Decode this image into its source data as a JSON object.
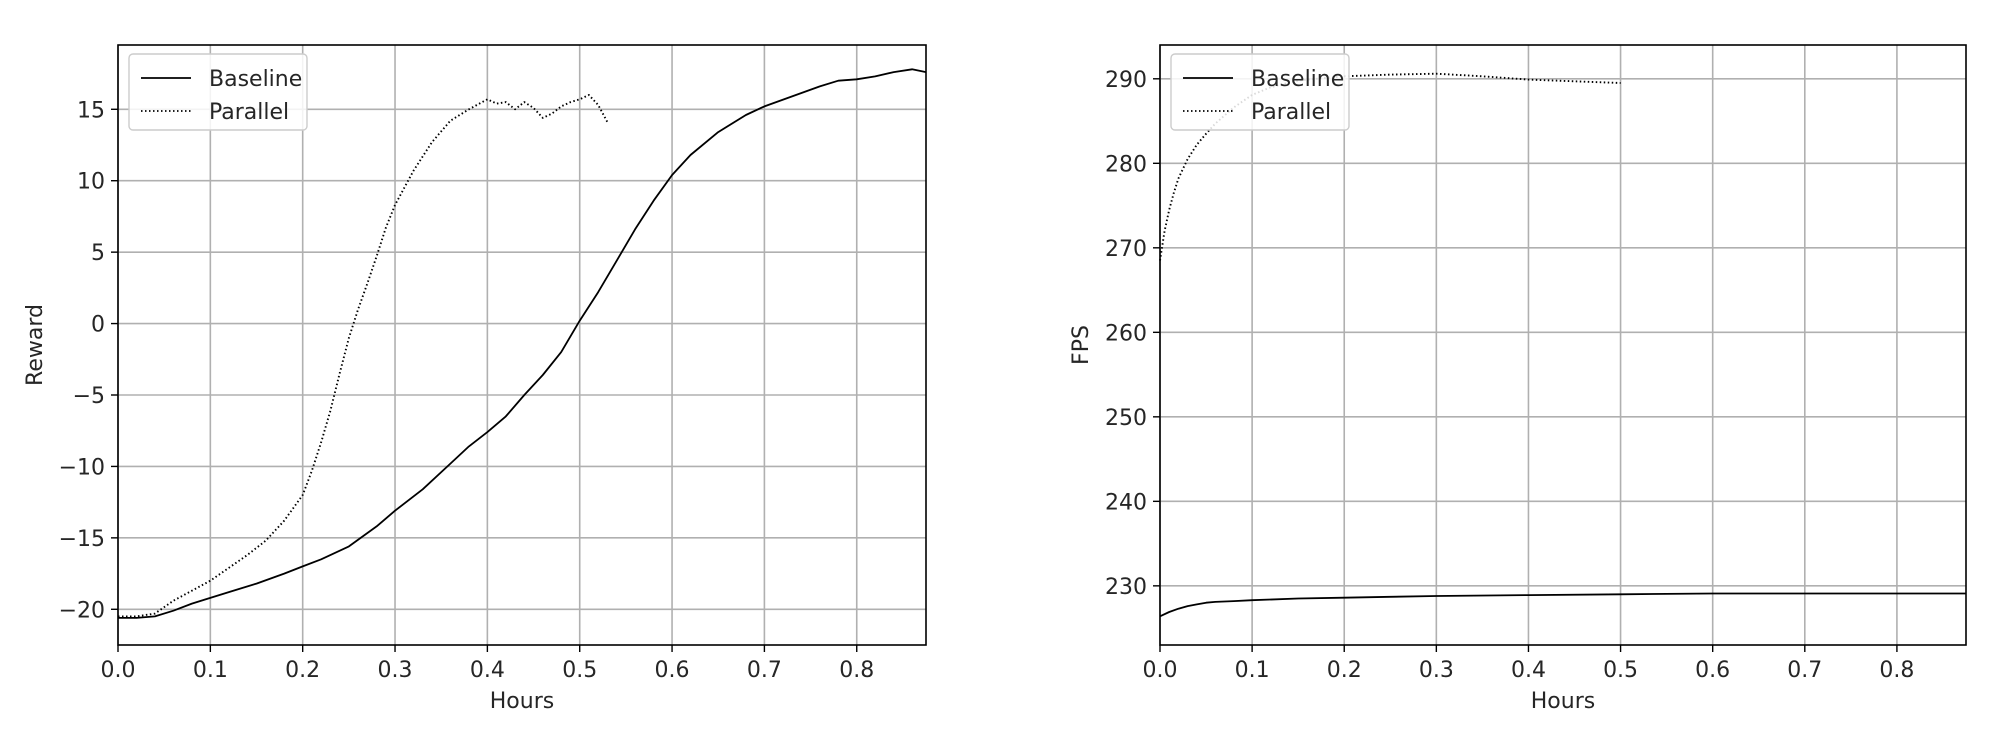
{
  "chart_data": [
    {
      "type": "line",
      "xlabel": "Hours",
      "ylabel": "Reward",
      "xlim": [
        0,
        0.875
      ],
      "ylim": [
        -22.5,
        19.5
      ],
      "xticks": [
        0.0,
        0.1,
        0.2,
        0.3,
        0.4,
        0.5,
        0.6,
        0.7,
        0.8
      ],
      "xtick_labels": [
        "0.0",
        "0.1",
        "0.2",
        "0.3",
        "0.4",
        "0.5",
        "0.6",
        "0.7",
        "0.8"
      ],
      "yticks": [
        -20,
        -15,
        -10,
        -5,
        0,
        5,
        10,
        15
      ],
      "ytick_labels": [
        "−20",
        "−15",
        "−10",
        "−5",
        "0",
        "5",
        "10",
        "15"
      ],
      "grid": true,
      "legend": "top-left",
      "series": [
        {
          "name": "Baseline",
          "style": "solid",
          "x": [
            0.0,
            0.02,
            0.04,
            0.06,
            0.08,
            0.1,
            0.12,
            0.15,
            0.18,
            0.2,
            0.22,
            0.25,
            0.28,
            0.3,
            0.33,
            0.36,
            0.38,
            0.4,
            0.42,
            0.44,
            0.46,
            0.48,
            0.5,
            0.52,
            0.54,
            0.56,
            0.58,
            0.6,
            0.62,
            0.65,
            0.68,
            0.7,
            0.73,
            0.76,
            0.78,
            0.8,
            0.82,
            0.84,
            0.86,
            0.875
          ],
          "y": [
            -20.6,
            -20.6,
            -20.5,
            -20.1,
            -19.6,
            -19.2,
            -18.8,
            -18.2,
            -17.5,
            -17.0,
            -16.5,
            -15.6,
            -14.2,
            -13.1,
            -11.6,
            -9.8,
            -8.6,
            -7.6,
            -6.5,
            -5.0,
            -3.6,
            -2.0,
            0.2,
            2.2,
            4.4,
            6.6,
            8.6,
            10.4,
            11.8,
            13.4,
            14.6,
            15.2,
            15.9,
            16.6,
            17.0,
            17.1,
            17.3,
            17.6,
            17.8,
            17.6
          ]
        },
        {
          "name": "Parallel",
          "style": "dotted",
          "x": [
            0.0,
            0.02,
            0.04,
            0.06,
            0.08,
            0.1,
            0.12,
            0.14,
            0.16,
            0.18,
            0.2,
            0.21,
            0.22,
            0.23,
            0.24,
            0.25,
            0.26,
            0.27,
            0.28,
            0.29,
            0.3,
            0.32,
            0.34,
            0.36,
            0.38,
            0.4,
            0.41,
            0.42,
            0.43,
            0.44,
            0.45,
            0.46,
            0.47,
            0.48,
            0.49,
            0.5,
            0.51,
            0.52,
            0.53
          ],
          "y": [
            -20.5,
            -20.5,
            -20.3,
            -19.4,
            -18.7,
            -18.0,
            -17.1,
            -16.2,
            -15.2,
            -13.8,
            -12.0,
            -10.3,
            -8.3,
            -6.1,
            -3.5,
            -1.0,
            1.0,
            2.8,
            4.7,
            6.7,
            8.3,
            10.7,
            12.7,
            14.2,
            15.0,
            15.7,
            15.4,
            15.5,
            15.0,
            15.5,
            15.1,
            14.4,
            14.7,
            15.2,
            15.5,
            15.7,
            16.0,
            15.3,
            14.1
          ]
        }
      ]
    },
    {
      "type": "line",
      "xlabel": "Hours",
      "ylabel": "FPS",
      "xlim": [
        0,
        0.875
      ],
      "ylim": [
        223,
        294
      ],
      "xticks": [
        0.0,
        0.1,
        0.2,
        0.3,
        0.4,
        0.5,
        0.6,
        0.7,
        0.8
      ],
      "xtick_labels": [
        "0.0",
        "0.1",
        "0.2",
        "0.3",
        "0.4",
        "0.5",
        "0.6",
        "0.7",
        "0.8"
      ],
      "yticks": [
        230,
        240,
        250,
        260,
        270,
        280,
        290
      ],
      "ytick_labels": [
        "230",
        "240",
        "250",
        "260",
        "270",
        "280",
        "290"
      ],
      "grid": true,
      "legend": "top-left",
      "series": [
        {
          "name": "Baseline",
          "style": "solid",
          "x": [
            0.0,
            0.01,
            0.02,
            0.03,
            0.04,
            0.05,
            0.06,
            0.08,
            0.1,
            0.15,
            0.2,
            0.25,
            0.3,
            0.4,
            0.5,
            0.6,
            0.7,
            0.8,
            0.875
          ],
          "y": [
            226.4,
            226.9,
            227.3,
            227.6,
            227.8,
            228.0,
            228.1,
            228.2,
            228.3,
            228.5,
            228.6,
            228.7,
            228.8,
            228.9,
            229.0,
            229.1,
            229.1,
            229.1,
            229.1
          ]
        },
        {
          "name": "Parallel",
          "style": "dotted",
          "x": [
            0.0,
            0.005,
            0.01,
            0.015,
            0.02,
            0.03,
            0.04,
            0.05,
            0.06,
            0.08,
            0.1,
            0.12,
            0.15,
            0.2,
            0.25,
            0.3,
            0.35,
            0.4,
            0.45,
            0.5
          ],
          "y": [
            268.5,
            272.0,
            274.5,
            276.5,
            278.2,
            280.5,
            282.2,
            283.5,
            284.7,
            286.6,
            288.1,
            289.0,
            289.8,
            290.3,
            290.5,
            290.6,
            290.3,
            289.9,
            289.7,
            289.5
          ]
        }
      ]
    }
  ]
}
